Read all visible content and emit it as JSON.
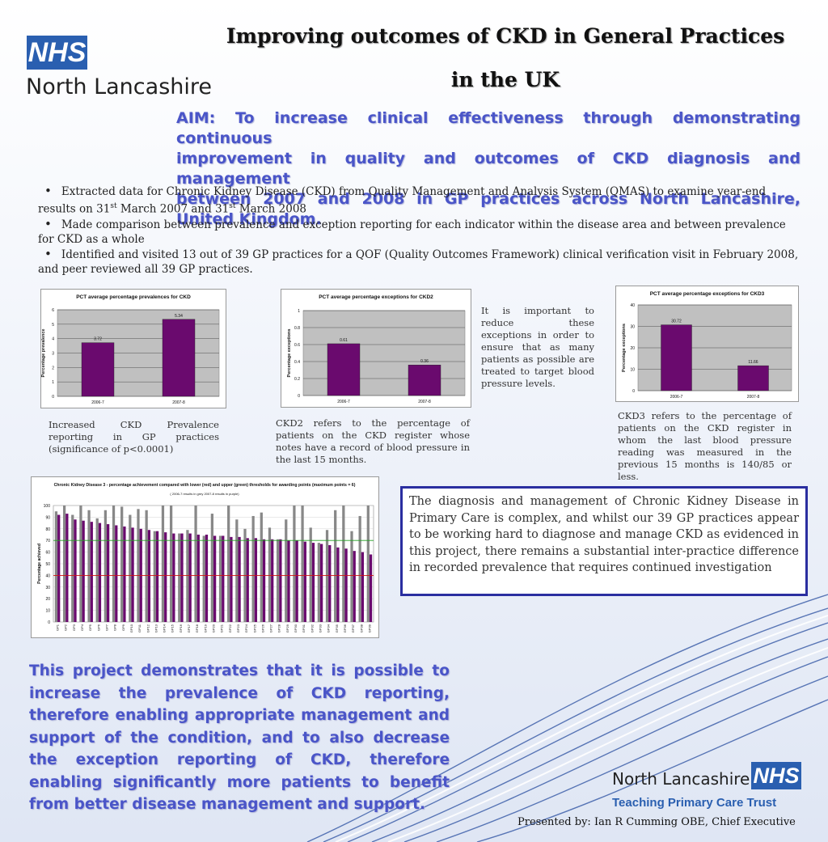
{
  "header": {
    "logo_text": "NHS",
    "org_name": "North Lancashire",
    "title_line1": "Improving outcomes of CKD in General Practices",
    "title_line2": "in the UK"
  },
  "aim": {
    "line1": "AIM: To increase clinical effectiveness through demonstrating continuous",
    "line2": "improvement in quality and outcomes of CKD diagnosis and management",
    "line3": "between 2007 and 2008 in GP practices across North Lancashire, United Kingdom."
  },
  "bullets": [
    {
      "bullet": "•",
      "a": "Extracted data for Chronic Kidney Disease (CKD) from Quality Management and Analysis System (QMAS) to examine year-end results on 31",
      "sup1": "st",
      "b": " March 2007 and 31",
      "sup2": "st",
      "c": " March 2008"
    },
    {
      "bullet": "•",
      "text": "Made comparison between prevalence and exception reporting for each indicator within the disease area and between prevalence for CKD as a whole"
    },
    {
      "bullet": "•",
      "text": "Identified and visited 13 out of 39 GP practices for a QOF (Quality Outcomes Framework) clinical verification visit in February 2008, and peer reviewed all 39 GP practices."
    }
  ],
  "colors": {
    "bar": "#6a0a6e",
    "accent_text": "#4a55c8",
    "nhs_blue": "#2a5fb0",
    "plot_bg": "#c0c0c0",
    "box_border": "#2a2ea0"
  },
  "chart_data": [
    {
      "type": "bar",
      "title": "PCT average percentage prevalences for CKD",
      "ylabel": "Percentage prevalence",
      "xlabel": "",
      "categories": [
        "2006-7",
        "2007-8"
      ],
      "values": [
        3.72,
        5.34
      ],
      "data_labels": [
        "3.72",
        "5.34"
      ],
      "ylim": [
        0,
        6
      ],
      "yticks": [
        "0",
        "1",
        "2",
        "3",
        "4",
        "5",
        "6"
      ],
      "grid": true
    },
    {
      "type": "bar",
      "title": "PCT average percentage exceptions for CKD2",
      "ylabel": "Percentage exceptions",
      "xlabel": "",
      "categories": [
        "2006-7",
        "2007-8"
      ],
      "values": [
        0.61,
        0.36
      ],
      "data_labels": [
        "0.61",
        "0.36"
      ],
      "ylim": [
        0,
        1
      ],
      "yticks": [
        "0",
        "0.2",
        "0.4",
        "0.6",
        "0.8",
        "1"
      ],
      "grid": true
    },
    {
      "type": "bar",
      "title": "PCT average percentage exceptions for CKD3",
      "ylabel": "Percentage exceptions",
      "xlabel": "",
      "categories": [
        "2006-7",
        "2007-8"
      ],
      "values": [
        30.72,
        11.66
      ],
      "data_labels": [
        "30.72",
        "11.66"
      ],
      "ylim": [
        0,
        40
      ],
      "yticks": [
        "0",
        "10",
        "20",
        "30",
        "40"
      ],
      "grid": true
    },
    {
      "type": "bar",
      "title": "Chronic Kidney Disease 3 - percentage achievement compared with lower (red) and upper (green) thresholds for awarding points (maximum points = 6)",
      "subtitle": "( 2006-7 results in grey 2007-8 results in purple)",
      "ylabel": "Percentage achieved",
      "xlabel": "",
      "categories": [
        "GP1",
        "GP2",
        "GP3",
        "GP4",
        "GP5",
        "GP6",
        "GP7",
        "GP8",
        "GP9",
        "GP10",
        "GP11",
        "GP12",
        "GP13",
        "GP14",
        "GP15",
        "GP16",
        "GP17",
        "GP18",
        "GP19",
        "GP20",
        "GP21",
        "GP22",
        "GP23",
        "GP24",
        "GP25",
        "GP26",
        "GP27",
        "GP28",
        "GP29",
        "GP30",
        "GP31",
        "GP32",
        "GP33",
        "GP34",
        "GP35",
        "GP36",
        "GP37",
        "GP38",
        "GP39"
      ],
      "series": [
        {
          "name": "2006-7",
          "values": [
            95,
            100,
            92,
            100,
            96,
            89,
            96,
            100,
            99,
            92,
            97,
            96,
            78,
            100,
            100,
            76,
            79,
            100,
            74,
            93,
            74,
            100,
            88,
            80,
            91,
            94,
            81,
            71,
            88,
            100,
            100,
            81,
            68,
            79,
            96,
            100,
            78,
            91,
            100
          ]
        },
        {
          "name": "2007-8",
          "values": [
            92,
            93,
            88,
            87,
            86,
            85,
            84,
            83,
            82,
            81,
            80,
            79,
            78,
            77,
            76,
            76,
            76,
            75,
            75,
            74,
            74,
            73,
            73,
            72,
            72,
            71,
            71,
            71,
            70,
            70,
            69,
            68,
            67,
            66,
            64,
            63,
            61,
            60,
            58
          ]
        }
      ],
      "thresholds": {
        "lower": 40,
        "upper": 70
      },
      "ylim": [
        0,
        100
      ],
      "yticks": [
        "0",
        "10",
        "20",
        "30",
        "40",
        "50",
        "60",
        "70",
        "80",
        "90",
        "100"
      ],
      "grid": true
    }
  ],
  "captions": {
    "prevalence": "Increased CKD Prevalence reporting in GP practices (significance of p<0.0001)",
    "ckd2": "CKD2 refers to the percentage of patients on the CKD register whose notes have a record of blood pressure in the last 15 months.",
    "exceptions_note": "It is important to reduce these exceptions in order to ensure that as many patients as possible are treated to target blood pressure levels.",
    "ckd3": "CKD3 refers to the percentage of patients on the CKD register in whom the last blood pressure reading was measured in the previous 15 months is 140/85 or less."
  },
  "conclusion": "The diagnosis and management of Chronic Kidney Disease in Primary Care is complex, and whilst our 39 GP practices appear to be working hard to diagnose and manage CKD as evidenced in this project, there remains a substantial inter-practice difference in recorded prevalence that requires continued investigation",
  "summary": "This project demonstrates that it is possible to increase the prevalence of CKD reporting, therefore enabling appropriate management and support of the condition, and to also decrease the exception reporting of CKD, therefore enabling significantly more patients to benefit from better disease management and support.",
  "footer": {
    "org_name": "North Lancashire",
    "logo_text": "NHS",
    "trust": "Teaching Primary Care Trust",
    "presented_by": "Presented by: Ian R Cumming OBE, Chief Executive"
  }
}
